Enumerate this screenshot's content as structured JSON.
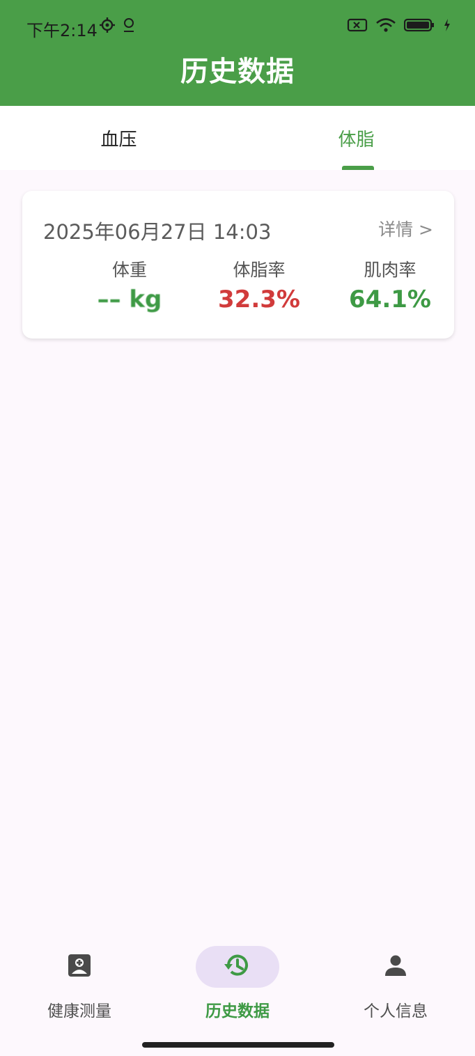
{
  "status_bar": {
    "time": "下午2:14"
  },
  "header": {
    "title": "历史数据"
  },
  "tabs": [
    {
      "label": "血压",
      "active": false
    },
    {
      "label": "体脂",
      "active": true
    }
  ],
  "records": [
    {
      "date": "2025年06月27日 14:03",
      "detail_label": "详情 >",
      "metrics": {
        "weight": {
          "label": "体重",
          "value": "–– kg"
        },
        "body_fat": {
          "label": "体脂率",
          "value": "32.3%"
        },
        "muscle": {
          "label": "肌肉率",
          "value": "64.1%"
        }
      }
    }
  ],
  "bottom_nav": [
    {
      "label": "健康测量",
      "icon": "health-measure-icon",
      "active": false
    },
    {
      "label": "历史数据",
      "icon": "history-icon",
      "active": true
    },
    {
      "label": "个人信息",
      "icon": "person-icon",
      "active": false
    }
  ],
  "colors": {
    "primary": "#4a9e48",
    "danger": "#d13b3b",
    "nav_active_bg": "#e9dff5"
  }
}
